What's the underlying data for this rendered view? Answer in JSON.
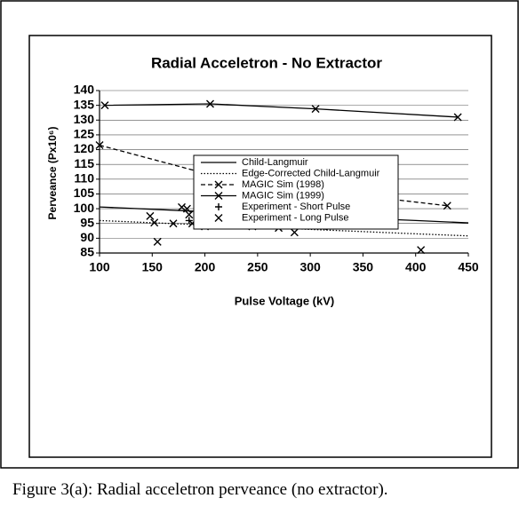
{
  "chart_data": {
    "type": "line",
    "title": "Radial Acceletron - No Extractor",
    "x_label": "Pulse Voltage (kV)",
    "y_label": "Perveance (Px10⁶)",
    "xlim": [
      100,
      450
    ],
    "xticks": [
      100,
      150,
      200,
      250,
      300,
      350,
      400,
      450
    ],
    "ylim": [
      85,
      140
    ],
    "yticks": [
      85,
      90,
      95,
      100,
      105,
      110,
      115,
      120,
      125,
      130,
      135,
      140
    ],
    "grid": "y",
    "series": [
      {
        "name": "Child-Langmuir",
        "color": "#000000",
        "line": "solid",
        "marker": "none",
        "x": [
          100,
          200,
          300,
          400,
          450
        ],
        "values": [
          100.6,
          99,
          97.5,
          96,
          95.2
        ]
      },
      {
        "name": "Edge-Corrected Child-Langmuir",
        "color": "#000000",
        "line": "dotted",
        "marker": "none",
        "x": [
          100,
          200,
          300,
          400,
          450
        ],
        "values": [
          96,
          94.5,
          93,
          91.5,
          90.8
        ]
      },
      {
        "name": "MAGIC Sim (1998)",
        "color": "#000000",
        "line": "dashed",
        "marker": "x",
        "x": [
          100,
          200,
          310,
          430
        ],
        "values": [
          121.5,
          112,
          106,
          101
        ]
      },
      {
        "name": "MAGIC Sim (1999)",
        "color": "#000000",
        "line": "solid",
        "marker": "x",
        "x": [
          105,
          205,
          305,
          440
        ],
        "values": [
          135,
          135.5,
          133.8,
          131
        ]
      },
      {
        "name": "Experiment - Short Pulse",
        "color": "#000000",
        "line": "none",
        "marker": "+",
        "x": [
          210,
          215,
          225,
          240,
          270,
          290,
          300,
          305,
          310,
          315,
          220,
          185,
          250,
          200,
          260
        ],
        "values": [
          102.5,
          99.5,
          97,
          96,
          97,
          97,
          98,
          96,
          95,
          94,
          95,
          96,
          96,
          97,
          97.5
        ]
      },
      {
        "name": "Experiment - Long Pulse",
        "color": "#000000",
        "line": "none",
        "marker": "x",
        "x": [
          148,
          155,
          152,
          170,
          178,
          183,
          185,
          188,
          195,
          200,
          210,
          215,
          220,
          230,
          240,
          245,
          255,
          265,
          268,
          272,
          275,
          270,
          285,
          300,
          305,
          310,
          405
        ],
        "values": [
          97.5,
          88.8,
          95.3,
          95,
          100.5,
          100,
          98,
          95,
          97,
          94,
          98,
          96,
          94.5,
          96,
          98,
          94,
          97,
          103.5,
          102,
          101,
          100,
          93.5,
          92,
          96,
          95.5,
          97,
          86
        ]
      }
    ],
    "caption": "Figure 3(a): Radial acceletron perveance (no extractor)."
  }
}
